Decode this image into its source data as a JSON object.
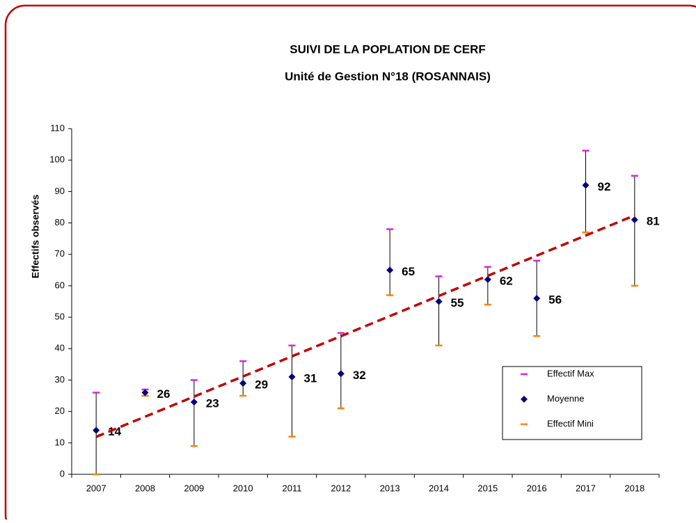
{
  "chart_data": {
    "type": "errorbar",
    "title": "SUIVI DE LA POPLATION DE CERF",
    "subtitle": "Unité de Gestion N°18 (ROSANNAIS)",
    "y_label": "Effectifs observés",
    "categories": [
      "2007",
      "2008",
      "2009",
      "2010",
      "2011",
      "2012",
      "2013",
      "2014",
      "2015",
      "2016",
      "2017",
      "2018"
    ],
    "series": [
      {
        "name": "Effectif Max",
        "color": "#e020e0",
        "values": [
          26,
          27,
          30,
          36,
          41,
          45,
          78,
          63,
          66,
          68,
          103,
          95
        ]
      },
      {
        "name": "Moyenne",
        "color": "#000080",
        "values": [
          14,
          26,
          23,
          29,
          31,
          32,
          65,
          55,
          62,
          56,
          92,
          81
        ]
      },
      {
        "name": "Effectif Mini",
        "color": "#ff8000",
        "values": [
          0,
          25,
          9,
          25,
          12,
          21,
          57,
          41,
          54,
          44,
          77,
          60
        ]
      }
    ],
    "trendline": true,
    "trendline_color": "#c00000",
    "ylim": [
      0,
      110
    ],
    "yticks": [
      0,
      10,
      20,
      30,
      40,
      50,
      60,
      70,
      80,
      90,
      100,
      110
    ],
    "legend": "lower-right"
  }
}
